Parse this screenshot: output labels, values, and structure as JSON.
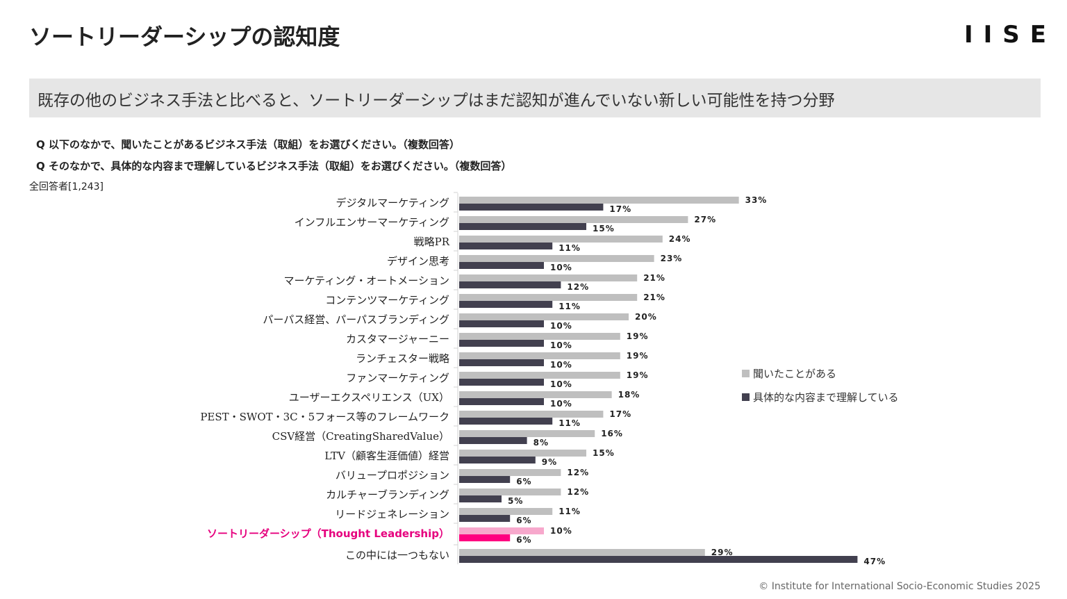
{
  "header": {
    "title": "ソートリーダーシップの認知度",
    "logo": "IISE"
  },
  "banner": {
    "text": "既存の他のビジネス手法と比べると、ソートリーダーシップはまだ認知が進んでいない新しい可能性を持つ分野"
  },
  "questions": [
    "Q  以下のなかで、聞いたことがあるビジネス手法（取組）をお選びください。（複数回答）",
    "Q  そのなかで、具体的な内容まで理解しているビジネス手法（取組）をお選びください。（複数回答）"
  ],
  "respondents": "全回答者[1,243]",
  "footer": {
    "copyright": "© Institute for International Socio-Economic Studies 2025"
  },
  "colors": {
    "heard": "#bfbfbf",
    "understood": "#42404f",
    "highlight_heard": "#f7a8cc",
    "highlight_understood": "#ff0080",
    "highlight_label": "#e6007e"
  },
  "chart_data": {
    "type": "bar",
    "orientation": "horizontal",
    "title": "",
    "xlabel": "",
    "ylabel": "",
    "xlim": [
      0,
      50
    ],
    "grid": false,
    "unit": "%",
    "legend_position": "right",
    "highlight_category": "ソートリーダーシップ（Thought Leadership）",
    "categories": [
      "デジタルマーケティング",
      "インフルエンサーマーケティング",
      "戦略PR",
      "デザイン思考",
      "マーケティング・オートメーション",
      "コンテンツマーケティング",
      "パーパス経営、パーパスブランディング",
      "カスタマージャーニー",
      "ランチェスター戦略",
      "ファンマーケティング",
      "ユーザーエクスペリエンス（UX）",
      "PEST・SWOT・3C・5フォース等のフレームワーク",
      "CSV経営（CreatingSharedValue）",
      "LTV（顧客生涯価値）経営",
      "バリュープロポジション",
      "カルチャーブランディング",
      "リードジェネレーション",
      "ソートリーダーシップ（Thought Leadership）",
      "この中には一つもない"
    ],
    "series": [
      {
        "name": "聞いたことがある",
        "values": [
          33,
          27,
          24,
          23,
          21,
          21,
          20,
          19,
          19,
          19,
          18,
          17,
          16,
          15,
          12,
          12,
          11,
          10,
          29
        ]
      },
      {
        "name": "具体的な内容まで理解している",
        "values": [
          17,
          15,
          11,
          10,
          12,
          11,
          10,
          10,
          10,
          10,
          10,
          11,
          8,
          9,
          6,
          5,
          6,
          6,
          47
        ]
      }
    ]
  }
}
